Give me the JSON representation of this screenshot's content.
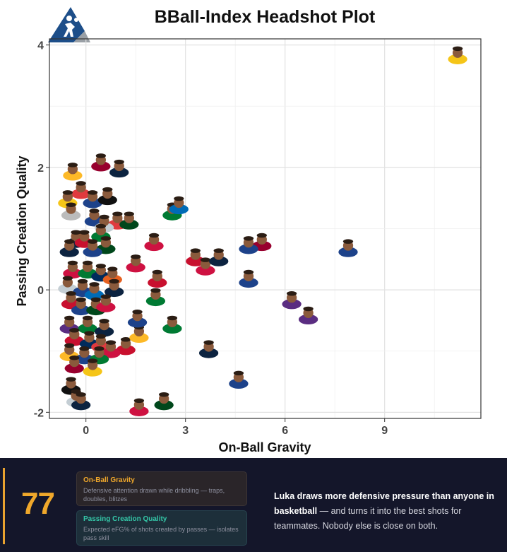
{
  "page": {
    "title": "BBall-Index Headshot Plot"
  },
  "chart_data": {
    "type": "scatter",
    "title": "BBall-Index Headshot Plot",
    "xlabel": "On-Ball Gravity",
    "ylabel": "Passing Creation Quality",
    "xlim": [
      -1.1,
      11.9
    ],
    "ylim": [
      -2.1,
      4.1
    ],
    "xticks": [
      0,
      3,
      6,
      9
    ],
    "yticks": [
      -2,
      0,
      2,
      4
    ],
    "xtick_labels": [
      "0",
      "3",
      "6",
      "9"
    ],
    "ytick_labels": [
      "-2",
      "0",
      "2",
      "4"
    ],
    "grid": true,
    "marker": "player headshot",
    "series": [
      {
        "points": [
          {
            "x": 11.2,
            "y": 3.85,
            "c": "#f5c518"
          },
          {
            "x": 7.9,
            "y": 0.7,
            "c": "#1d428a"
          },
          {
            "x": 6.2,
            "y": -0.15,
            "c": "#5a2d81"
          },
          {
            "x": 6.7,
            "y": -0.4,
            "c": "#5a2d81"
          },
          {
            "x": 4.9,
            "y": 0.2,
            "c": "#1d428a"
          },
          {
            "x": 4.6,
            "y": -1.45,
            "c": "#1d428a"
          },
          {
            "x": 3.7,
            "y": -0.95,
            "c": "#0c2340"
          },
          {
            "x": 5.3,
            "y": 0.8,
            "c": "#98002e"
          },
          {
            "x": 4.9,
            "y": 0.75,
            "c": "#1d428a"
          },
          {
            "x": 3.3,
            "y": 0.55,
            "c": "#c8102e"
          },
          {
            "x": 3.6,
            "y": 0.4,
            "c": "#ce1141"
          },
          {
            "x": 2.6,
            "y": 1.3,
            "c": "#007a33"
          },
          {
            "x": 2.8,
            "y": 1.4,
            "c": "#006bb6"
          },
          {
            "x": 4.0,
            "y": 0.55,
            "c": "#0c2340"
          },
          {
            "x": 2.05,
            "y": 0.8,
            "c": "#ce1141"
          },
          {
            "x": 2.6,
            "y": -0.55,
            "c": "#007a33"
          },
          {
            "x": 1.6,
            "y": -1.9,
            "c": "#ce1141"
          },
          {
            "x": 2.35,
            "y": -1.8,
            "c": "#00471b"
          },
          {
            "x": 2.1,
            "y": -0.1,
            "c": "#007a33"
          },
          {
            "x": 2.15,
            "y": 0.2,
            "c": "#c8102e"
          },
          {
            "x": 1.5,
            "y": 0.45,
            "c": "#ce1141"
          },
          {
            "x": 1.2,
            "y": -0.9,
            "c": "#c8102e"
          },
          {
            "x": 1.6,
            "y": -0.7,
            "c": "#fdb927"
          },
          {
            "x": 1.55,
            "y": -0.45,
            "c": "#1d428a"
          },
          {
            "x": 0.95,
            "y": 1.15,
            "c": "#e03a3e"
          },
          {
            "x": 1.3,
            "y": 1.15,
            "c": "#00471b"
          },
          {
            "x": 0.45,
            "y": 2.1,
            "c": "#98002e"
          },
          {
            "x": 1.0,
            "y": 2.0,
            "c": "#0c2340"
          },
          {
            "x": -0.4,
            "y": 1.95,
            "c": "#fdb927"
          },
          {
            "x": -0.15,
            "y": 1.65,
            "c": "#e03a3e"
          },
          {
            "x": -0.55,
            "y": 1.5,
            "c": "#f5c518"
          },
          {
            "x": 0.2,
            "y": 1.5,
            "c": "#1d428a"
          },
          {
            "x": 0.65,
            "y": 1.55,
            "c": "#111111"
          },
          {
            "x": -0.45,
            "y": 1.3,
            "c": "#bbbbbb"
          },
          {
            "x": 0.25,
            "y": 1.2,
            "c": "#1d428a"
          },
          {
            "x": 0.55,
            "y": 1.1,
            "c": "#c4ced4"
          },
          {
            "x": 0.45,
            "y": 0.95,
            "c": "#007a33"
          },
          {
            "x": -0.3,
            "y": 0.85,
            "c": "#0c2340"
          },
          {
            "x": -0.05,
            "y": 0.85,
            "c": "#c8102e"
          },
          {
            "x": 0.6,
            "y": 0.75,
            "c": "#00471b"
          },
          {
            "x": 0.2,
            "y": 0.7,
            "c": "#1d428a"
          },
          {
            "x": -0.5,
            "y": 0.7,
            "c": "#0c2340"
          },
          {
            "x": -0.4,
            "y": 0.35,
            "c": "#ce1141"
          },
          {
            "x": 0.05,
            "y": 0.35,
            "c": "#007a33"
          },
          {
            "x": 0.45,
            "y": 0.3,
            "c": "#002b5c"
          },
          {
            "x": 0.8,
            "y": 0.25,
            "c": "#e56020"
          },
          {
            "x": -0.55,
            "y": 0.1,
            "c": "#c4ced4"
          },
          {
            "x": -0.1,
            "y": 0.05,
            "c": "#1d428a"
          },
          {
            "x": 0.25,
            "y": 0.0,
            "c": "#006bb6"
          },
          {
            "x": 0.85,
            "y": 0.05,
            "c": "#0c2340"
          },
          {
            "x": -0.45,
            "y": -0.15,
            "c": "#c8102e"
          },
          {
            "x": -0.15,
            "y": -0.25,
            "c": "#1d428a"
          },
          {
            "x": 0.3,
            "y": -0.25,
            "c": "#00471b"
          },
          {
            "x": 0.6,
            "y": -0.2,
            "c": "#ce1141"
          },
          {
            "x": -0.5,
            "y": -0.55,
            "c": "#5a2d81"
          },
          {
            "x": 0.05,
            "y": -0.55,
            "c": "#007a33"
          },
          {
            "x": 0.55,
            "y": -0.6,
            "c": "#0c2340"
          },
          {
            "x": -0.35,
            "y": -0.75,
            "c": "#c8102e"
          },
          {
            "x": 0.1,
            "y": -0.8,
            "c": "#002b5c"
          },
          {
            "x": 0.45,
            "y": -0.85,
            "c": "#e03a3e"
          },
          {
            "x": 0.75,
            "y": -0.95,
            "c": "#ce1141"
          },
          {
            "x": -0.5,
            "y": -1.0,
            "c": "#fdb927"
          },
          {
            "x": -0.05,
            "y": -1.05,
            "c": "#1d428a"
          },
          {
            "x": 0.4,
            "y": -1.05,
            "c": "#007a33"
          },
          {
            "x": -0.45,
            "y": -1.55,
            "c": "#111111"
          },
          {
            "x": -0.3,
            "y": -1.75,
            "c": "#c4ced4"
          },
          {
            "x": -0.15,
            "y": -1.8,
            "c": "#0c2340"
          },
          {
            "x": -0.35,
            "y": -1.2,
            "c": "#98002e"
          },
          {
            "x": 0.2,
            "y": -1.25,
            "c": "#f5c518"
          }
        ]
      }
    ]
  },
  "footer": {
    "score": "77",
    "gravity_card": {
      "title": "On-Ball Gravity",
      "description": "Defensive attention drawn while dribbling — traps, doubles, blitzes"
    },
    "passing_card": {
      "title": "Passing Creation Quality",
      "description": "Expected eFG% of shots created by passes — isolates pass skill"
    },
    "summary_bold_1": "Luka draws more defensive pressure than anyone in basketball",
    "summary_rest": " — and turns it into the best shots for teammates. Nobody else is close on both."
  },
  "colors": {
    "footer_bg": "#14162a",
    "accent_orange": "#f0a82b",
    "accent_teal": "#34c7a8",
    "logo_blue": "#1d4e89",
    "logo_gray": "#9aa0a6"
  }
}
